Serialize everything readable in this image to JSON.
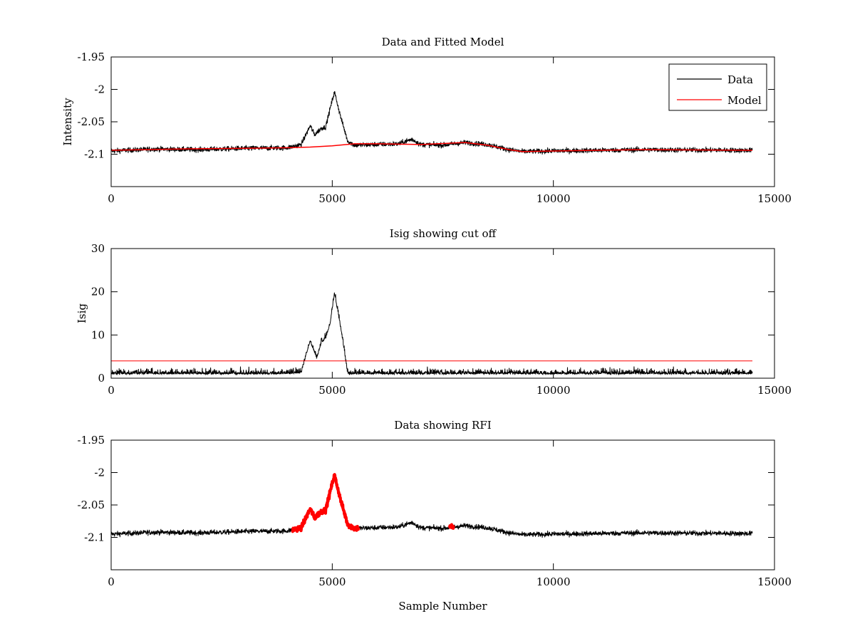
{
  "chart_data": [
    {
      "type": "line",
      "title": "Data and Fitted Model",
      "xlabel": "",
      "ylabel": "Intensity",
      "xlim": [
        0,
        15000
      ],
      "ylim": [
        -2.15,
        -1.95
      ],
      "xticks": [
        0,
        5000,
        10000,
        15000
      ],
      "yticks": [
        -1.95,
        -2,
        -2.05,
        -2.1
      ],
      "ytick_labels": [
        "-1.95",
        "-2",
        "-2.05",
        "-2.1"
      ],
      "legend": {
        "placement": "top-right",
        "entries": [
          "Data",
          "Model"
        ]
      },
      "series": [
        {
          "name": "Data",
          "color": "#000000",
          "noise": 0.004,
          "x": [
            0,
            1000,
            2000,
            3000,
            4000,
            4300,
            4500,
            4600,
            4750,
            4850,
            4950,
            5050,
            5200,
            5350,
            5500,
            6000,
            6500,
            6800,
            7000,
            7500,
            8000,
            8500,
            9000,
            9300,
            10000,
            12000,
            14500
          ],
          "y": [
            -2.095,
            -2.092,
            -2.093,
            -2.091,
            -2.09,
            -2.085,
            -2.056,
            -2.07,
            -2.06,
            -2.058,
            -2.03,
            -2.004,
            -2.045,
            -2.08,
            -2.086,
            -2.085,
            -2.084,
            -2.077,
            -2.085,
            -2.086,
            -2.082,
            -2.085,
            -2.093,
            -2.096,
            -2.095,
            -2.093,
            -2.094
          ]
        },
        {
          "name": "Model",
          "color": "#ff0000",
          "noise": 0,
          "x": [
            0,
            1500,
            3000,
            4000,
            4500,
            5000,
            5500,
            6000,
            7000,
            8000,
            8500,
            9000,
            9300,
            10000,
            12000,
            14500
          ],
          "y": [
            -2.094,
            -2.092,
            -2.091,
            -2.09,
            -2.089,
            -2.087,
            -2.084,
            -2.084,
            -2.085,
            -2.082,
            -2.086,
            -2.093,
            -2.096,
            -2.095,
            -2.093,
            -2.094
          ]
        }
      ]
    },
    {
      "type": "line",
      "title": "Isig showing cut off",
      "xlabel": "",
      "ylabel": "Isig",
      "xlim": [
        0,
        15000
      ],
      "ylim": [
        0,
        30
      ],
      "xticks": [
        0,
        5000,
        10000,
        15000
      ],
      "yticks": [
        0,
        10,
        20,
        30
      ],
      "ytick_labels": [
        "0",
        "10",
        "20",
        "30"
      ],
      "series": [
        {
          "name": "Isig",
          "color": "#000000",
          "noise": 1.0,
          "floor": 0,
          "x": [
            0,
            4000,
            4300,
            4500,
            4650,
            4750,
            4850,
            4950,
            5050,
            5200,
            5350,
            5500,
            14500
          ],
          "y": [
            0.9,
            0.9,
            1.2,
            8.5,
            4.5,
            8.0,
            9.0,
            12.5,
            19.5,
            11.0,
            0.8,
            0.9,
            0.9
          ]
        },
        {
          "name": "Cut off",
          "color": "#ff0000",
          "noise": 0,
          "x": [
            0,
            14500
          ],
          "y": [
            4,
            4
          ]
        }
      ]
    },
    {
      "type": "line",
      "title": "Data showing RFI",
      "xlabel": "Sample Number",
      "ylabel": "",
      "xlim": [
        0,
        15000
      ],
      "ylim": [
        -2.15,
        -1.95
      ],
      "xticks": [
        0,
        5000,
        10000,
        15000
      ],
      "yticks": [
        -1.95,
        -2,
        -2.05,
        -2.1
      ],
      "ytick_labels": [
        "-1.95",
        "-2",
        "-2.05",
        "-2.1"
      ],
      "series": [
        {
          "name": "Data",
          "color": "#000000",
          "noise": 0.004,
          "same_as": "Data"
        },
        {
          "name": "RFI",
          "color": "#ff0000",
          "noise": 0.004,
          "thick": true,
          "ranges": [
            [
              4100,
              5600
            ],
            [
              7650,
              7750
            ]
          ]
        }
      ]
    }
  ],
  "xtick_labels": [
    "0",
    "5000",
    "10000",
    "15000"
  ]
}
